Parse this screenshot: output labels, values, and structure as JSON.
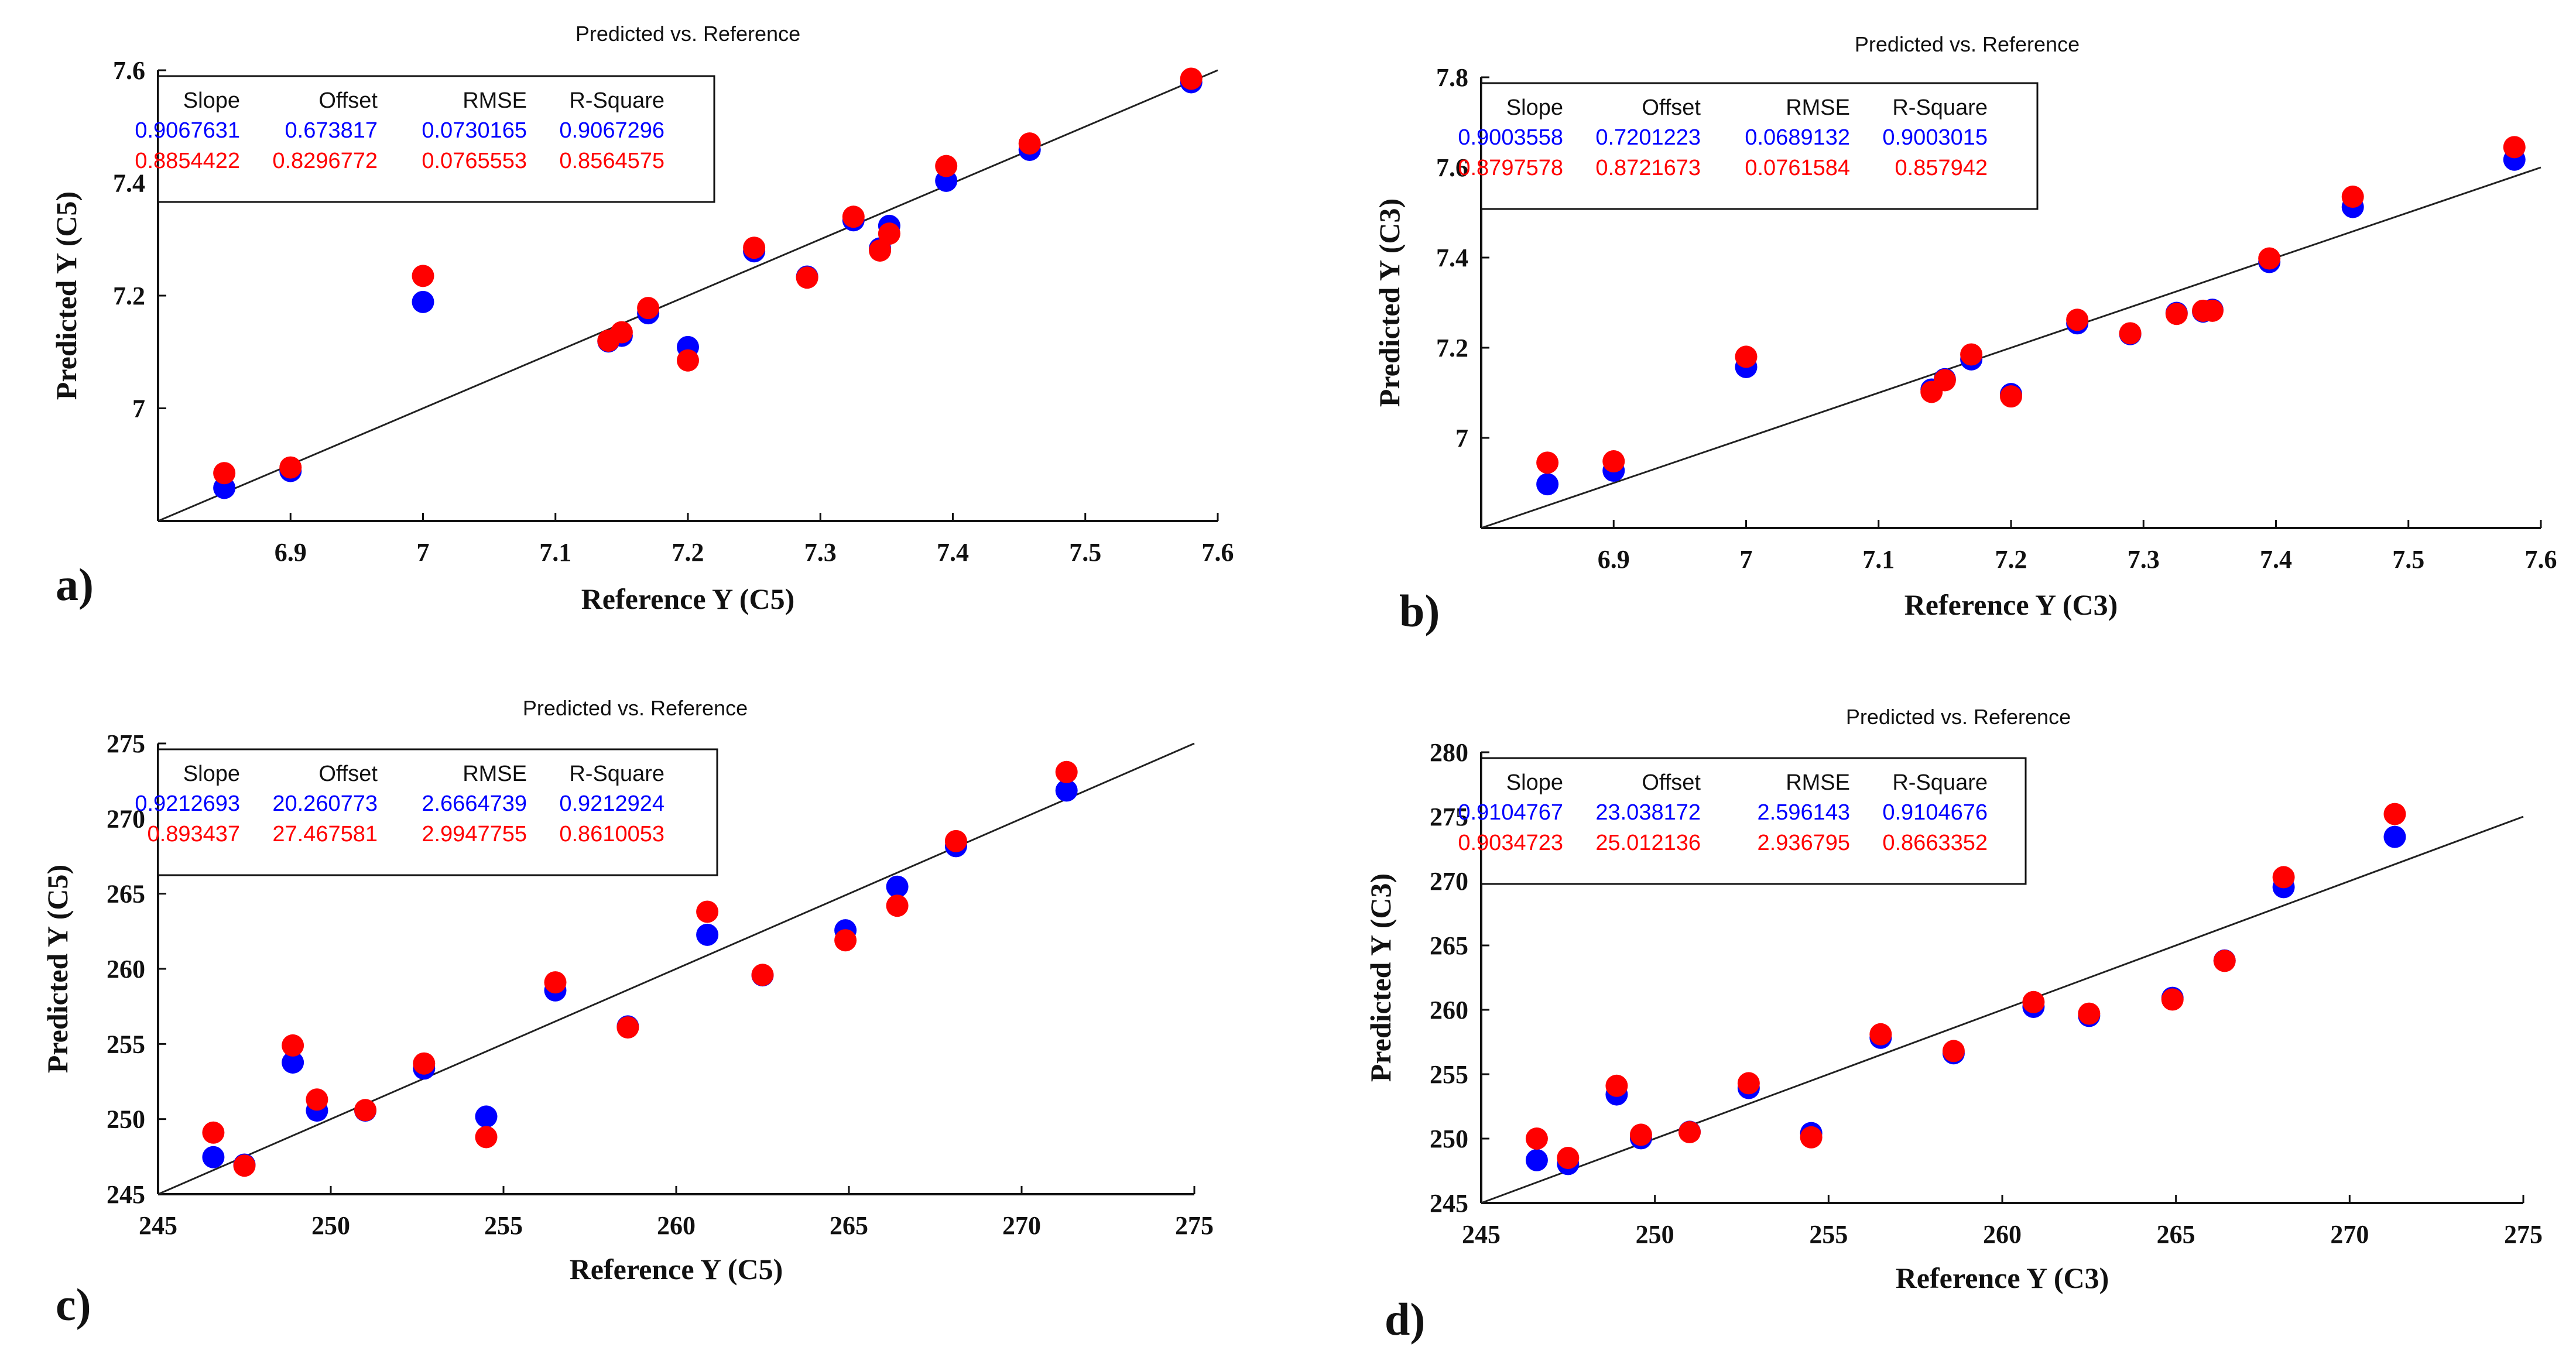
{
  "colors": {
    "series_1": "#0000ff",
    "series_2": "#ff0000",
    "axis": "#111111",
    "line": "#222222"
  },
  "chart_data": [
    {
      "panel": "a)",
      "type": "scatter",
      "title": "Predicted vs. Reference",
      "xlabel": "Reference Y (C5)",
      "ylabel": "Predicted Y (C5)",
      "xlim": [
        6.8,
        7.6
      ],
      "ylim": [
        6.8,
        7.6
      ],
      "xticks": [
        6.9,
        7,
        7.1,
        7.2,
        7.3,
        7.4,
        7.5,
        7.6
      ],
      "yticks": [
        7,
        7.2,
        7.4,
        7.6
      ],
      "xtick_labels": [
        "6.9",
        "7",
        "7.1",
        "7.2",
        "7.3",
        "7.4",
        "7.5",
        "7.6"
      ],
      "ytick_labels": [
        "7",
        "7.2",
        "7.4",
        "7.6"
      ],
      "line": [
        [
          6.8,
          6.8
        ],
        [
          7.6,
          7.6
        ]
      ],
      "grid": false,
      "stats": {
        "headers": [
          "Slope",
          "Offset",
          "RMSE",
          "R-Square"
        ],
        "rows": [
          [
            "0.9067631",
            "0.673817",
            "0.0730165",
            "0.9067296"
          ],
          [
            "0.8854422",
            "0.8296772",
            "0.0765553",
            "0.8564575"
          ]
        ]
      },
      "series": [
        {
          "x": [
            6.85,
            6.9,
            7.0,
            7.14,
            7.15,
            7.17,
            7.2,
            7.25,
            7.29,
            7.325,
            7.345,
            7.352,
            7.395,
            7.458,
            7.58
          ],
          "y": [
            6.865,
            6.895,
            7.195,
            7.125,
            7.135,
            7.175,
            7.115,
            7.285,
            7.24,
            7.34,
            7.29,
            7.33,
            7.41,
            7.465,
            7.585
          ]
        },
        {
          "x": [
            6.85,
            6.9,
            7.0,
            7.14,
            7.15,
            7.17,
            7.2,
            7.25,
            7.29,
            7.325,
            7.345,
            7.352,
            7.395,
            7.458,
            7.58
          ],
          "y": [
            6.885,
            6.895,
            7.235,
            7.12,
            7.135,
            7.178,
            7.085,
            7.285,
            7.232,
            7.34,
            7.28,
            7.31,
            7.43,
            7.47,
            7.585
          ]
        }
      ]
    },
    {
      "panel": "b)",
      "type": "scatter",
      "title": "Predicted vs. Reference",
      "xlabel": "Reference Y (C3)",
      "ylabel": "Predicted Y (C3)",
      "xlim": [
        6.8,
        7.6
      ],
      "ylim": [
        6.8,
        7.8
      ],
      "xticks": [
        6.9,
        7,
        7.1,
        7.2,
        7.3,
        7.4,
        7.5,
        7.6
      ],
      "yticks": [
        7,
        7.2,
        7.4,
        7.6,
        7.8
      ],
      "xtick_labels": [
        "6.9",
        "7",
        "7.1",
        "7.2",
        "7.3",
        "7.4",
        "7.5",
        "7.6"
      ],
      "ytick_labels": [
        "7",
        "7.2",
        "7.4",
        "7.6",
        "7.8"
      ],
      "line": [
        [
          6.8,
          6.8
        ],
        [
          7.6,
          7.6
        ]
      ],
      "grid": false,
      "stats": {
        "headers": [
          "Slope",
          "Offset",
          "RMSE",
          "R-Square"
        ],
        "rows": [
          [
            "0.9003558",
            "0.7201223",
            "0.0689132",
            "0.9003015"
          ],
          [
            "0.8797578",
            "0.8721673",
            "0.0761584",
            "0.857942"
          ]
        ]
      },
      "series": [
        {
          "x": [
            6.85,
            6.9,
            7.0,
            7.14,
            7.15,
            7.17,
            7.2,
            7.25,
            7.29,
            7.325,
            7.345,
            7.352,
            7.395,
            7.458,
            7.58
          ],
          "y": [
            6.905,
            6.935,
            7.165,
            7.115,
            7.138,
            7.182,
            7.105,
            7.262,
            7.238,
            7.285,
            7.288,
            7.292,
            7.398,
            7.52,
            7.625
          ]
        },
        {
          "x": [
            6.85,
            6.9,
            7.0,
            7.14,
            7.15,
            7.17,
            7.2,
            7.25,
            7.29,
            7.325,
            7.345,
            7.352,
            7.395,
            7.458,
            7.58
          ],
          "y": [
            6.945,
            6.948,
            7.18,
            7.102,
            7.128,
            7.185,
            7.092,
            7.262,
            7.232,
            7.275,
            7.282,
            7.282,
            7.398,
            7.535,
            7.645
          ]
        }
      ]
    },
    {
      "panel": "c)",
      "type": "scatter",
      "title": "Predicted vs. Reference",
      "xlabel": "Reference Y (C5)",
      "ylabel": "Predicted Y (C5)",
      "xlim": [
        245,
        275
      ],
      "ylim": [
        245,
        275
      ],
      "xticks": [
        245,
        250,
        255,
        260,
        265,
        270,
        275
      ],
      "yticks": [
        245,
        250,
        255,
        260,
        265,
        270,
        275
      ],
      "xtick_labels": [
        "245",
        "250",
        "255",
        "260",
        "265",
        "270",
        "275"
      ],
      "ytick_labels": [
        "245",
        "250",
        "255",
        "260",
        "265",
        "270",
        "275"
      ],
      "line": [
        [
          245,
          245
        ],
        [
          275,
          275
        ]
      ],
      "grid": false,
      "stats": {
        "headers": [
          "Slope",
          "Offset",
          "RMSE",
          "R-Square"
        ],
        "rows": [
          [
            "0.9212693",
            "20.260773",
            "2.6664739",
            "0.9212924"
          ],
          [
            "0.893437",
            "27.467581",
            "2.9947755",
            "0.8610053"
          ]
        ]
      },
      "series": [
        {
          "x": [
            246.6,
            247.5,
            248.9,
            249.6,
            251.0,
            252.7,
            254.5,
            256.5,
            258.6,
            260.9,
            262.5,
            264.9,
            266.4,
            268.1,
            271.3
          ],
          "y": [
            247.7,
            247.2,
            254.0,
            250.8,
            250.8,
            253.6,
            250.4,
            258.8,
            256.4,
            262.5,
            259.8,
            262.8,
            265.7,
            268.4,
            272.1
          ]
        },
        {
          "x": [
            246.6,
            247.5,
            248.9,
            249.6,
            251.0,
            252.7,
            254.5,
            256.5,
            258.6,
            260.9,
            262.5,
            264.9,
            266.4,
            268.1,
            271.3
          ],
          "y": [
            249.1,
            246.9,
            254.9,
            251.3,
            250.6,
            253.7,
            248.8,
            259.1,
            256.1,
            263.8,
            259.6,
            261.9,
            264.2,
            268.5,
            273.1
          ]
        }
      ]
    },
    {
      "panel": "d)",
      "type": "scatter",
      "title": "Predicted vs. Reference",
      "xlabel": "Reference Y (C3)",
      "ylabel": "Predicted Y (C3)",
      "xlim": [
        245,
        275
      ],
      "ylim": [
        245,
        280
      ],
      "xticks": [
        245,
        250,
        255,
        260,
        265,
        270,
        275
      ],
      "yticks": [
        245,
        250,
        255,
        260,
        265,
        270,
        275,
        280
      ],
      "xtick_labels": [
        "245",
        "250",
        "255",
        "260",
        "265",
        "270",
        "275"
      ],
      "ytick_labels": [
        "245",
        "250",
        "255",
        "260",
        "265",
        "270",
        "275",
        "280"
      ],
      "line": [
        [
          245,
          245
        ],
        [
          275,
          275
        ]
      ],
      "grid": false,
      "stats": {
        "headers": [
          "Slope",
          "Offset",
          "RMSE",
          "R-Square"
        ],
        "rows": [
          [
            "0.9104767",
            "23.038172",
            "2.596143",
            "0.9104676"
          ],
          [
            "0.9034723",
            "25.012136",
            "2.936795",
            "0.8663352"
          ]
        ]
      },
      "series": [
        {
          "x": [
            246.6,
            247.5,
            248.9,
            249.6,
            251.0,
            252.7,
            254.5,
            256.5,
            258.6,
            260.9,
            262.5,
            264.9,
            266.4,
            268.1,
            271.3
          ],
          "y": [
            248.6,
            248.3,
            253.7,
            250.3,
            250.8,
            254.2,
            250.7,
            258.1,
            256.9,
            260.5,
            259.8,
            261.2,
            264.1,
            269.8,
            273.7
          ]
        },
        {
          "x": [
            246.6,
            247.5,
            248.9,
            249.6,
            251.0,
            252.7,
            254.5,
            256.5,
            258.6,
            260.9,
            262.5,
            264.9,
            266.4,
            268.1,
            271.3
          ],
          "y": [
            250.0,
            248.5,
            254.1,
            250.3,
            250.5,
            254.3,
            250.1,
            258.1,
            256.8,
            260.6,
            259.7,
            260.8,
            263.8,
            270.3,
            275.2
          ]
        }
      ]
    }
  ]
}
